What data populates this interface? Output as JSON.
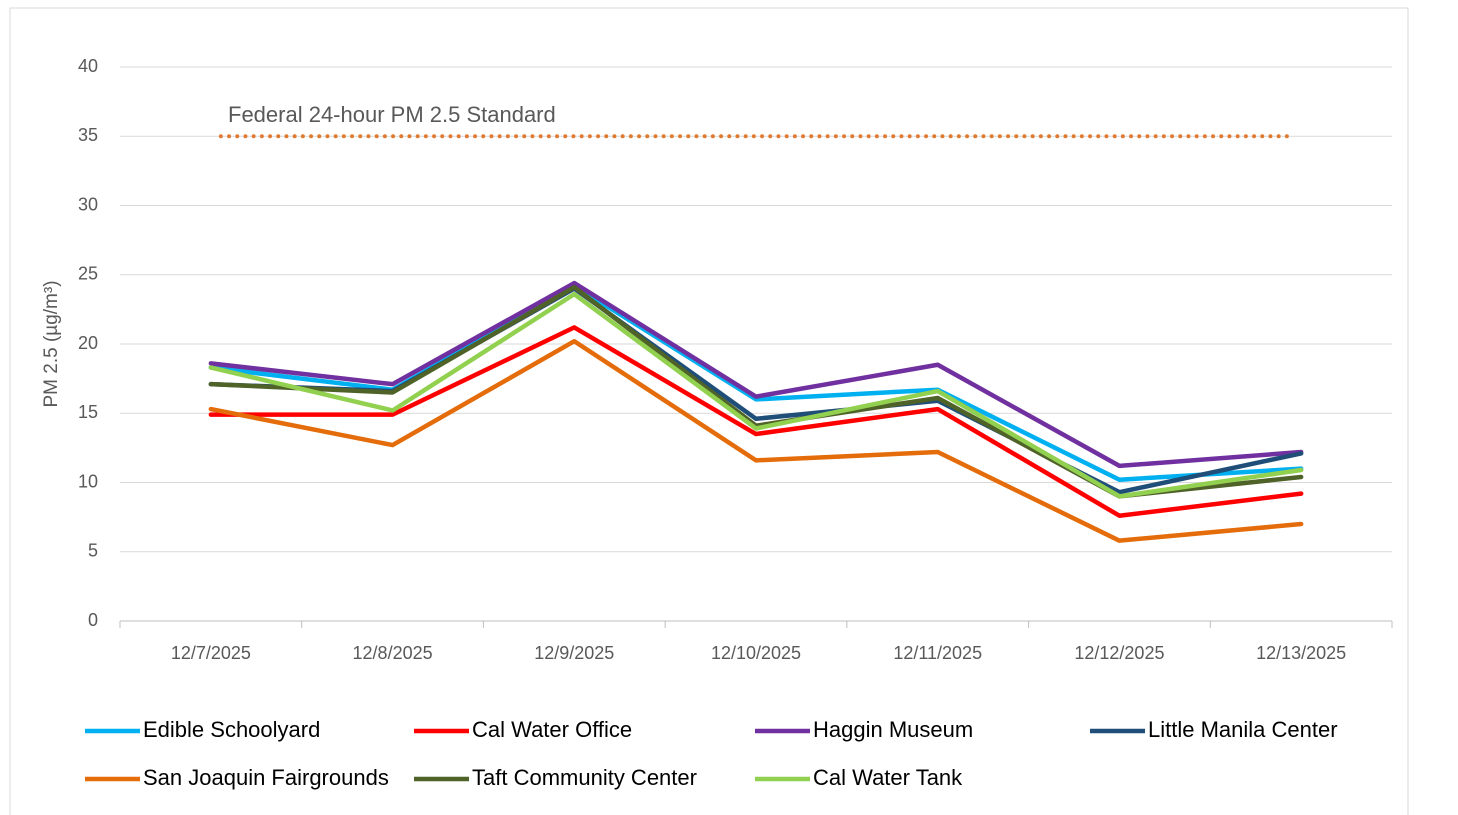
{
  "chart_data": {
    "type": "line",
    "y_label": "PM 2.5 (µg/m³)",
    "categories": [
      "12/7/2025",
      "12/8/2025",
      "12/9/2025",
      "12/10/2025",
      "12/11/2025",
      "12/12/2025",
      "12/13/2025"
    ],
    "series": [
      {
        "name": "Edible Schoolyard",
        "color": "#00b0f0",
        "values": [
          18.3,
          16.7,
          24.2,
          16.0,
          16.7,
          10.2,
          11.0
        ]
      },
      {
        "name": "Cal Water Office",
        "color": "#ff0000",
        "values": [
          14.9,
          14.9,
          21.2,
          13.5,
          15.3,
          7.6,
          9.2
        ]
      },
      {
        "name": "Haggin Museum",
        "color": "#7030a0",
        "values": [
          18.6,
          17.1,
          24.4,
          16.2,
          18.5,
          11.2,
          12.2
        ]
      },
      {
        "name": "Little Manila Center",
        "color": "#1f4e79",
        "values": [
          17.1,
          16.6,
          24.0,
          14.6,
          15.9,
          9.3,
          12.1
        ]
      },
      {
        "name": "San Joaquin Fairgrounds",
        "color": "#e46c0a",
        "values": [
          15.3,
          12.7,
          20.2,
          11.6,
          12.2,
          5.8,
          7.0
        ]
      },
      {
        "name": "Taft Community Center",
        "color": "#4f6228",
        "values": [
          17.1,
          16.5,
          24.1,
          14.1,
          16.1,
          9.0,
          10.4
        ]
      },
      {
        "name": "Cal Water Tank",
        "color": "#92d050",
        "values": [
          18.3,
          15.2,
          23.6,
          13.9,
          16.6,
          9.0,
          10.9
        ]
      }
    ],
    "reference": {
      "label": "Federal 24-hour PM 2.5 Standard",
      "value": 35,
      "color": "#e07a30"
    },
    "ylim": [
      0,
      40
    ],
    "yticks": [
      0,
      5,
      10,
      15,
      20,
      25,
      30,
      35,
      40
    ],
    "grid": true,
    "legend": "bottom"
  }
}
